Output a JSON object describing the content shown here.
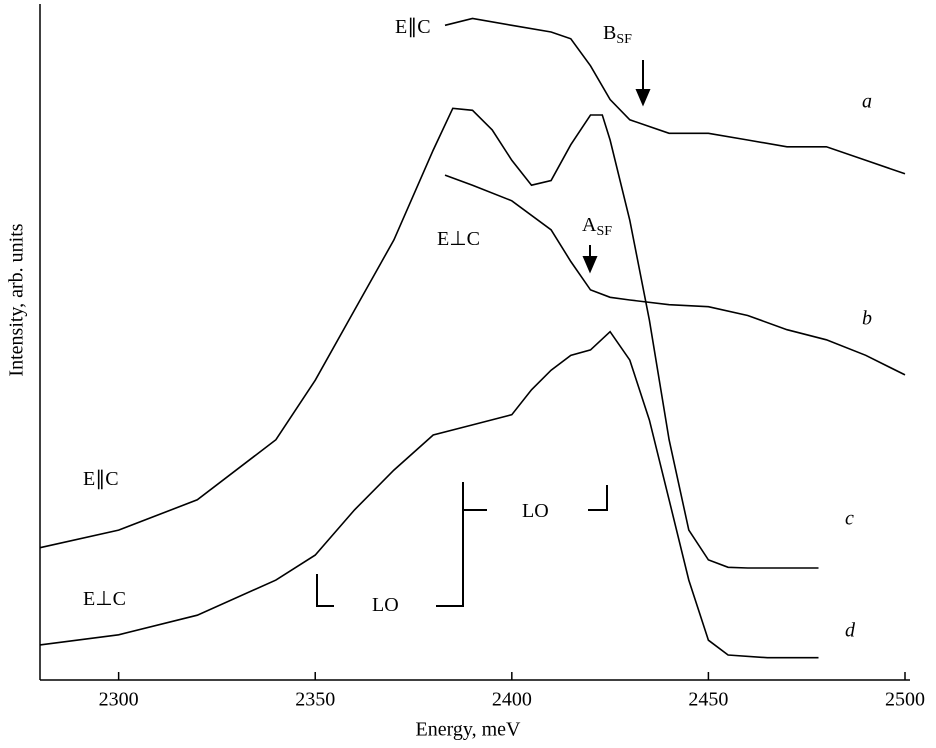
{
  "chart_data": {
    "type": "line",
    "x_label": "Energy, meV",
    "y_label": "Intensity, arb. units",
    "xlim": [
      2280,
      2500
    ],
    "ylim": [
      0,
      100
    ],
    "xticks": [
      2300,
      2350,
      2400,
      2450,
      2500
    ],
    "grid": false,
    "color": "#000000",
    "series": [
      {
        "name": "a",
        "x": [
          2383,
          2390,
          2400,
          2410,
          2415,
          2420,
          2425,
          2430,
          2440,
          2450,
          2460,
          2470,
          2480,
          2490,
          2500
        ],
        "values": [
          97,
          98,
          97,
          96,
          95,
          91,
          86,
          83,
          81,
          81,
          80,
          79,
          79,
          77,
          75
        ]
      },
      {
        "name": "b",
        "x": [
          2383,
          2390,
          2400,
          2410,
          2415,
          2420,
          2425,
          2430,
          2440,
          2450,
          2460,
          2470,
          2480,
          2490,
          2500
        ],
        "values": [
          74.8,
          73.3,
          71,
          66.7,
          62,
          57.8,
          56.7,
          56.3,
          55.6,
          55.3,
          54,
          51.9,
          50.4,
          48.1,
          45.2
        ]
      },
      {
        "name": "c",
        "x": [
          2280,
          2300,
          2320,
          2340,
          2350,
          2360,
          2370,
          2380,
          2385,
          2390,
          2395,
          2400,
          2405,
          2410,
          2415,
          2420,
          2423,
          2425,
          2430,
          2435,
          2440,
          2445,
          2450,
          2455,
          2460,
          2478
        ],
        "values": [
          19.6,
          22.2,
          26.7,
          35.6,
          44.4,
          54.8,
          65.2,
          78.5,
          84.7,
          84.4,
          81.5,
          77,
          73.3,
          74,
          79.3,
          83.7,
          83.7,
          80,
          68.1,
          53.3,
          35.6,
          22.2,
          17.8,
          16.7,
          16.6,
          16.6
        ]
      },
      {
        "name": "d",
        "x": [
          2280,
          2300,
          2320,
          2340,
          2350,
          2360,
          2370,
          2380,
          2390,
          2400,
          2405,
          2410,
          2415,
          2420,
          2425,
          2430,
          2435,
          2440,
          2445,
          2450,
          2455,
          2465,
          2478
        ],
        "values": [
          5.2,
          6.7,
          9.6,
          14.8,
          18.5,
          25.2,
          31.1,
          36.3,
          37.8,
          39.3,
          43,
          45.9,
          48.1,
          48.9,
          51.6,
          47.4,
          38.5,
          26.7,
          14.8,
          5.9,
          3.7,
          3.3,
          3.3
        ]
      }
    ],
    "annotations": [
      {
        "text": "E∥C"
      },
      {
        "text": "B",
        "sub": "SF"
      },
      {
        "text": "E⊥C"
      },
      {
        "text": "A",
        "sub": "SF"
      },
      {
        "text": "E∥C"
      },
      {
        "text": "LO"
      },
      {
        "text": "E⊥C"
      },
      {
        "text": "LO"
      }
    ]
  }
}
